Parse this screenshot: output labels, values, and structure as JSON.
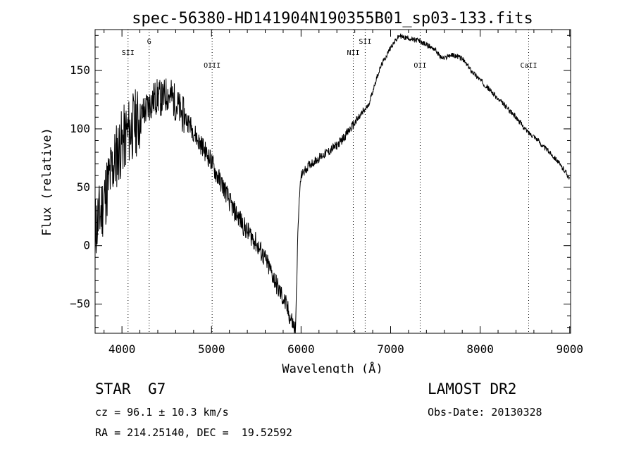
{
  "chart_data": {
    "type": "line",
    "title": "spec-56380-HD141904N190355B01_sp03-133.fits",
    "xlabel": "Wavelength (Å)",
    "ylabel": "Flux (relative)",
    "xlim": [
      3700,
      9010
    ],
    "ylim": [
      -75,
      185
    ],
    "xticks": [
      4000,
      5000,
      6000,
      7000,
      8000,
      9000
    ],
    "yticks": [
      -50,
      0,
      50,
      100,
      150
    ],
    "grid": false,
    "lines": [
      {
        "label": "SII",
        "x": 4068
      },
      {
        "label": "G",
        "x": 4304
      },
      {
        "label": "OIII",
        "x": 5007
      },
      {
        "label": "NII",
        "x": 6583
      },
      {
        "label": "SII",
        "x": 6716
      },
      {
        "label": "OII",
        "x": 7330
      },
      {
        "label": "CaII",
        "x": 8542
      }
    ],
    "series": [
      {
        "x": [
          3700,
          3750,
          3800,
          3850,
          3900,
          3950,
          4000,
          4050,
          4100,
          4150,
          4200,
          4250,
          4300,
          4350,
          4400,
          4450,
          4500,
          4550,
          4600,
          4650,
          4700,
          4750,
          4800,
          4850,
          4900,
          4950,
          5000,
          5050,
          5100,
          5150,
          5200,
          5250,
          5300,
          5350,
          5400,
          5450,
          5500,
          5550,
          5600,
          5650,
          5700,
          5750,
          5800,
          5850,
          5880,
          5900,
          5920,
          5940,
          5960,
          5980,
          6000,
          6050,
          6100,
          6150,
          6200,
          6250,
          6300,
          6350,
          6400,
          6450,
          6500,
          6550,
          6600,
          6650,
          6700,
          6750,
          6800,
          6850,
          6900,
          6950,
          7000,
          7050,
          7100,
          7150,
          7200,
          7250,
          7300,
          7350,
          7400,
          7450,
          7500,
          7550,
          7600,
          7650,
          7700,
          7750,
          7800,
          7850,
          7900,
          7950,
          8000,
          8050,
          8100,
          8150,
          8200,
          8250,
          8300,
          8350,
          8400,
          8450,
          8500,
          8550,
          8600,
          8650,
          8700,
          8750,
          8800,
          8850,
          8900,
          8950,
          8980,
          9000
        ],
        "y": [
          15,
          25,
          40,
          55,
          68,
          80,
          88,
          95,
          100,
          105,
          108,
          115,
          120,
          125,
          128,
          125,
          130,
          128,
          122,
          115,
          110,
          105,
          98,
          90,
          85,
          78,
          72,
          62,
          55,
          48,
          38,
          30,
          25,
          18,
          12,
          8,
          2,
          -5,
          -12,
          -20,
          -28,
          -38,
          -45,
          -55,
          -62,
          -65,
          -70,
          -72,
          0,
          40,
          60,
          65,
          70,
          72,
          75,
          78,
          80,
          83,
          86,
          90,
          95,
          100,
          105,
          110,
          115,
          120,
          132,
          145,
          155,
          162,
          170,
          175,
          180,
          178,
          178,
          176,
          176,
          174,
          172,
          170,
          168,
          162,
          160,
          163,
          163,
          162,
          160,
          155,
          150,
          146,
          142,
          138,
          134,
          130,
          125,
          122,
          118,
          114,
          110,
          105,
          100,
          96,
          94,
          90,
          85,
          82,
          78,
          74,
          68,
          64,
          60,
          58
        ]
      }
    ]
  },
  "info": {
    "class_label": "STAR",
    "subclass": "G7",
    "survey": "LAMOST DR2",
    "cz": "cz = 96.1 ± 10.3 km/s",
    "obs_date": "Obs-Date: 20130328",
    "coords": "RA = 214.25140, DEC =  19.52592"
  }
}
